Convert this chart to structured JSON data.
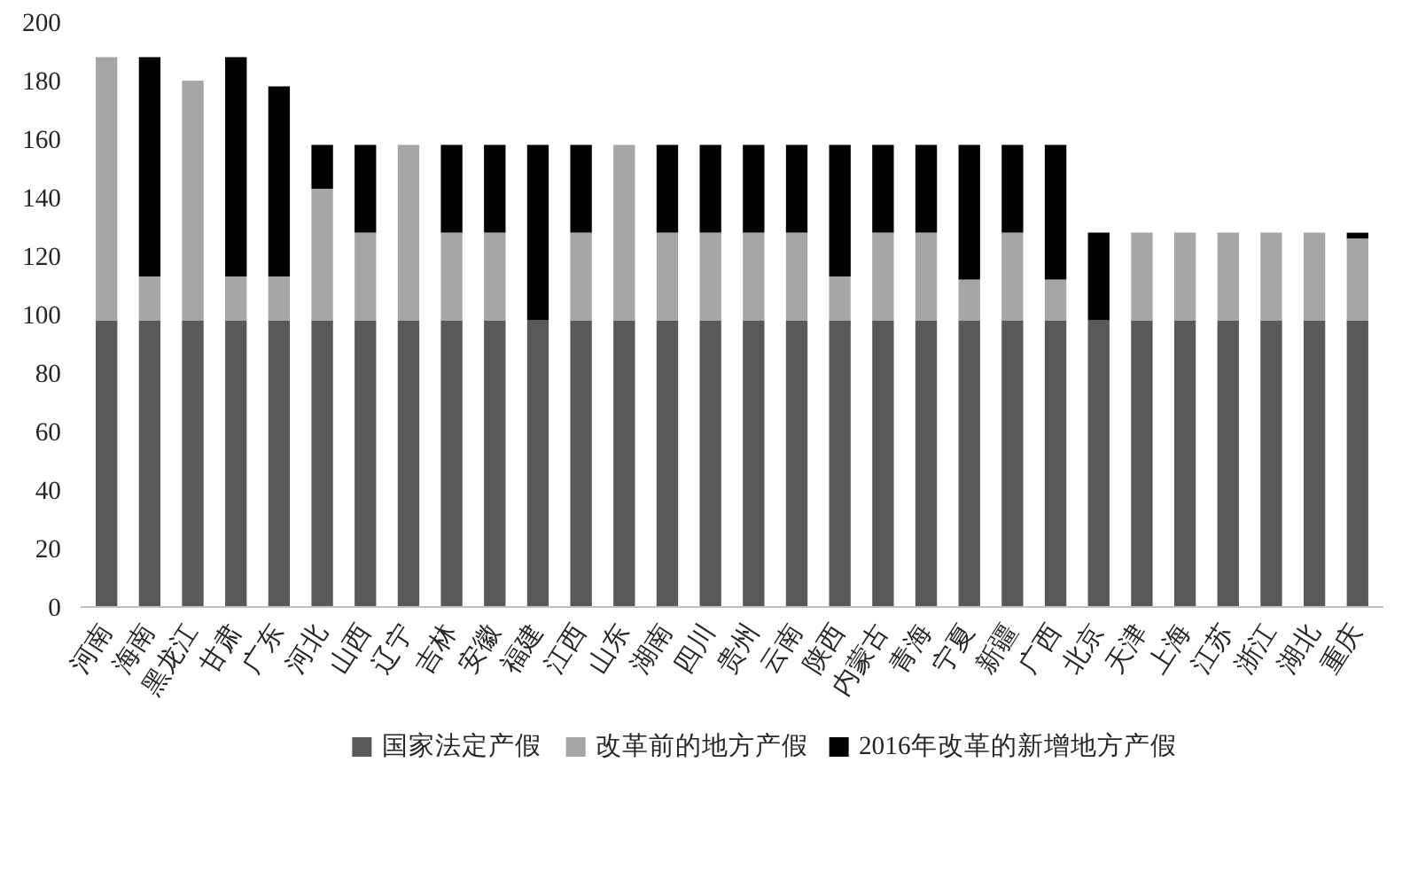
{
  "chart_data": {
    "type": "bar",
    "stacked": true,
    "categories": [
      "河南",
      "海南",
      "黑龙江",
      "甘肃",
      "广东",
      "河北",
      "山西",
      "辽宁",
      "吉林",
      "安徽",
      "福建",
      "江西",
      "山东",
      "湖南",
      "四川",
      "贵州",
      "云南",
      "陕西",
      "内蒙古",
      "青海",
      "宁夏",
      "新疆",
      "广西",
      "北京",
      "天津",
      "上海",
      "江苏",
      "浙江",
      "湖北",
      "重庆"
    ],
    "series": [
      {
        "name": "国家法定产假",
        "color": "#595959",
        "values": [
          98,
          98,
          98,
          98,
          98,
          98,
          98,
          98,
          98,
          98,
          98,
          98,
          98,
          98,
          98,
          98,
          98,
          98,
          98,
          98,
          98,
          98,
          98,
          98,
          98,
          98,
          98,
          98,
          98,
          98
        ]
      },
      {
        "name": "改革前的地方产假",
        "color": "#a6a6a6",
        "values": [
          90,
          15,
          82,
          15,
          15,
          45,
          30,
          60,
          30,
          30,
          0,
          30,
          60,
          30,
          30,
          30,
          30,
          15,
          30,
          30,
          14,
          30,
          14,
          0,
          30,
          30,
          30,
          30,
          30,
          28
        ]
      },
      {
        "name": "2016年改革的新增地方产假",
        "color": "#000000",
        "values": [
          0,
          75,
          0,
          75,
          65,
          15,
          30,
          0,
          30,
          30,
          60,
          30,
          0,
          30,
          30,
          30,
          30,
          45,
          30,
          30,
          46,
          30,
          46,
          30,
          0,
          0,
          0,
          0,
          0,
          2
        ]
      }
    ],
    "ylim": [
      0,
      200
    ],
    "yticks": [
      0,
      20,
      40,
      60,
      80,
      100,
      120,
      140,
      160,
      180,
      200
    ],
    "grid": false,
    "legend": "bottom"
  }
}
